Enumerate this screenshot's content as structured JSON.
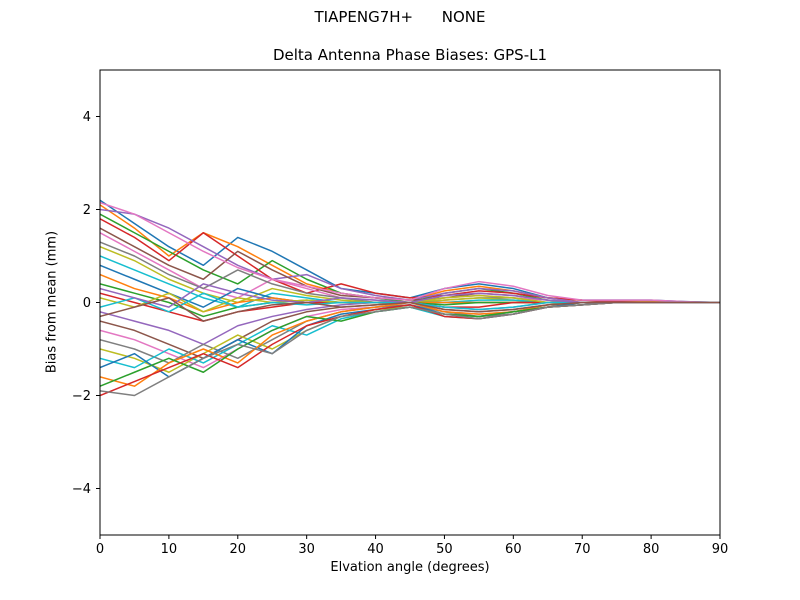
{
  "chart_data": {
    "type": "line",
    "suptitle": "TIAPENG7H+      NONE",
    "title": "Delta Antenna Phase Biases: GPS-L1",
    "xlabel": "Elvation angle (degrees)",
    "ylabel": "Bias from mean (mm)",
    "xlim": [
      0,
      90
    ],
    "ylim": [
      -5,
      5
    ],
    "xticks": [
      0,
      10,
      20,
      30,
      40,
      50,
      60,
      70,
      80,
      90
    ],
    "yticks": [
      -4,
      -2,
      0,
      2,
      4
    ],
    "grid": false,
    "legend": "none",
    "x": [
      0,
      5,
      10,
      15,
      20,
      25,
      30,
      35,
      40,
      45,
      50,
      55,
      60,
      65,
      70,
      75,
      80,
      85,
      90
    ],
    "series": [
      {
        "color": "#1f77b4",
        "values": [
          2.2,
          1.7,
          1.2,
          0.8,
          1.4,
          1.1,
          0.7,
          0.3,
          0.2,
          0.1,
          0.3,
          0.4,
          0.3,
          0.1,
          0.05,
          0.05,
          0.05,
          0.02,
          0
        ]
      },
      {
        "color": "#ff7f0e",
        "values": [
          2.1,
          1.6,
          1.0,
          1.5,
          1.2,
          0.8,
          0.4,
          0.2,
          0.1,
          0.05,
          0.25,
          0.35,
          0.25,
          0.1,
          0.05,
          0.03,
          0.02,
          0.01,
          0
        ]
      },
      {
        "color": "#2ca02c",
        "values": [
          1.9,
          1.5,
          1.1,
          0.7,
          0.4,
          0.9,
          0.5,
          0.2,
          0.1,
          0,
          0.2,
          0.3,
          0.2,
          0.05,
          0,
          0,
          0,
          0,
          0
        ]
      },
      {
        "color": "#d62728",
        "values": [
          1.8,
          1.4,
          0.9,
          1.5,
          1.0,
          0.5,
          0.2,
          0.4,
          0.2,
          0.1,
          0.15,
          0.25,
          0.2,
          0.1,
          0.05,
          0.02,
          0,
          0,
          0
        ]
      },
      {
        "color": "#9467bd",
        "values": [
          2.0,
          1.9,
          1.6,
          1.2,
          0.8,
          0.5,
          0.6,
          0.3,
          0.15,
          0.05,
          0.2,
          0.3,
          0.25,
          0.1,
          0,
          0,
          0,
          0,
          0
        ]
      },
      {
        "color": "#8c564b",
        "values": [
          1.6,
          1.2,
          0.8,
          0.5,
          1.1,
          0.7,
          0.35,
          0.15,
          0.1,
          0.05,
          0.1,
          0.2,
          0.15,
          0.05,
          0,
          0,
          0,
          0,
          0
        ]
      },
      {
        "color": "#e377c2",
        "values": [
          1.5,
          1.1,
          0.7,
          0.3,
          0.1,
          0.5,
          0.3,
          0.1,
          0.05,
          0,
          0.1,
          0.15,
          0.1,
          0.05,
          0,
          0,
          0,
          0,
          0
        ]
      },
      {
        "color": "#7f7f7f",
        "values": [
          1.3,
          1.0,
          0.6,
          0.3,
          0.7,
          0.4,
          0.2,
          0.1,
          0,
          0,
          0.05,
          0.1,
          0.1,
          0,
          0,
          0,
          0,
          0,
          0
        ]
      },
      {
        "color": "#bcbd22",
        "values": [
          1.2,
          0.9,
          0.5,
          0.2,
          0,
          0.3,
          0.15,
          0.05,
          0,
          0,
          0.05,
          0.1,
          0.05,
          0,
          0,
          0,
          0,
          0,
          0
        ]
      },
      {
        "color": "#17becf",
        "values": [
          1.0,
          0.7,
          0.4,
          0.1,
          -0.1,
          0.2,
          0.1,
          0,
          0,
          0,
          0,
          0.05,
          0.05,
          0,
          0,
          0,
          0,
          0,
          0
        ]
      },
      {
        "color": "#1f77b4",
        "values": [
          0.8,
          0.5,
          0.2,
          -0.1,
          0.3,
          0.1,
          0,
          0,
          0,
          0,
          0,
          0,
          0,
          0,
          0,
          0,
          0,
          0,
          0
        ]
      },
      {
        "color": "#ff7f0e",
        "values": [
          0.6,
          0.3,
          0.1,
          -0.2,
          0,
          0.1,
          0,
          0,
          0,
          0,
          0,
          0,
          0,
          0,
          0,
          0,
          0,
          0,
          0
        ]
      },
      {
        "color": "#2ca02c",
        "values": [
          0.4,
          0.2,
          0,
          -0.3,
          -0.1,
          0,
          0.05,
          0,
          0,
          0,
          -0.05,
          0,
          0,
          0,
          0,
          0,
          0,
          0,
          0
        ]
      },
      {
        "color": "#d62728",
        "values": [
          0.2,
          0,
          -0.2,
          -0.4,
          -0.2,
          -0.1,
          0,
          0,
          0,
          0,
          -0.1,
          -0.1,
          0,
          0,
          0,
          0,
          0,
          0,
          0
        ]
      },
      {
        "color": "#9467bd",
        "values": [
          -0.2,
          -0.4,
          -0.6,
          -0.9,
          -0.5,
          -0.3,
          -0.15,
          -0.05,
          0,
          0,
          -0.1,
          -0.15,
          -0.1,
          0,
          0,
          0,
          0,
          0,
          0
        ]
      },
      {
        "color": "#8c564b",
        "values": [
          -0.4,
          -0.6,
          -0.9,
          -1.2,
          -0.8,
          -0.4,
          -0.2,
          -0.1,
          -0.05,
          0,
          -0.15,
          -0.2,
          -0.15,
          -0.05,
          0,
          0,
          0,
          0,
          0
        ]
      },
      {
        "color": "#e377c2",
        "values": [
          -0.6,
          -0.8,
          -1.1,
          -1.4,
          -1.0,
          -0.6,
          -0.3,
          -0.15,
          -0.1,
          -0.05,
          -0.2,
          -0.25,
          -0.2,
          -0.1,
          -0.05,
          0,
          0,
          0,
          0
        ]
      },
      {
        "color": "#7f7f7f",
        "values": [
          -0.8,
          -1.0,
          -1.3,
          -0.9,
          -1.2,
          -0.8,
          -0.4,
          -0.2,
          -0.1,
          -0.05,
          -0.2,
          -0.3,
          -0.25,
          -0.1,
          -0.05,
          0,
          0,
          0,
          0
        ]
      },
      {
        "color": "#bcbd22",
        "values": [
          -1.0,
          -1.2,
          -1.5,
          -1.1,
          -0.7,
          -1.0,
          -0.6,
          -0.3,
          -0.15,
          -0.1,
          -0.25,
          -0.3,
          -0.2,
          -0.1,
          0,
          0,
          0,
          0,
          0
        ]
      },
      {
        "color": "#17becf",
        "values": [
          -1.2,
          -1.4,
          -1.0,
          -1.3,
          -0.9,
          -0.5,
          -0.7,
          -0.35,
          -0.2,
          -0.1,
          -0.3,
          -0.35,
          -0.25,
          -0.1,
          -0.05,
          0,
          0,
          0,
          0
        ]
      },
      {
        "color": "#1f77b4",
        "values": [
          -1.4,
          -1.1,
          -1.6,
          -1.2,
          -0.8,
          -1.1,
          -0.5,
          -0.25,
          -0.15,
          -0.05,
          -0.25,
          -0.3,
          -0.2,
          -0.1,
          0,
          0,
          0,
          0,
          0
        ]
      },
      {
        "color": "#ff7f0e",
        "values": [
          -1.6,
          -1.8,
          -1.3,
          -1.0,
          -1.3,
          -0.7,
          -0.4,
          -0.2,
          -0.1,
          0,
          -0.2,
          -0.25,
          -0.2,
          -0.05,
          0,
          0,
          0,
          0,
          0
        ]
      },
      {
        "color": "#2ca02c",
        "values": [
          -1.8,
          -1.5,
          -1.2,
          -1.5,
          -1.0,
          -0.6,
          -0.3,
          -0.4,
          -0.2,
          -0.1,
          -0.25,
          -0.3,
          -0.2,
          -0.1,
          -0.05,
          0,
          0,
          0,
          0
        ]
      },
      {
        "color": "#d62728",
        "values": [
          -2.0,
          -1.7,
          -1.4,
          -1.1,
          -1.4,
          -0.9,
          -0.5,
          -0.3,
          -0.15,
          -0.05,
          -0.3,
          -0.35,
          -0.25,
          -0.1,
          -0.05,
          0,
          0,
          0,
          0
        ]
      },
      {
        "color": "#e377c2",
        "values": [
          2.15,
          1.9,
          1.5,
          1.1,
          0.75,
          0.5,
          0.35,
          0.2,
          0.1,
          0.05,
          0.3,
          0.45,
          0.35,
          0.15,
          0.05,
          0.05,
          0.05,
          0.02,
          0
        ]
      },
      {
        "color": "#7f7f7f",
        "values": [
          -1.9,
          -2.0,
          -1.6,
          -1.2,
          -0.9,
          -1.1,
          -0.6,
          -0.3,
          -0.2,
          -0.1,
          -0.25,
          -0.35,
          -0.25,
          -0.1,
          -0.05,
          0,
          0,
          0,
          0
        ]
      },
      {
        "color": "#bcbd22",
        "values": [
          0.1,
          -0.1,
          0.2,
          -0.2,
          0.1,
          0,
          0.05,
          0,
          0,
          0,
          0.1,
          0.15,
          0.1,
          0,
          0,
          0,
          0,
          0,
          0
        ]
      },
      {
        "color": "#17becf",
        "values": [
          -0.1,
          0.1,
          -0.2,
          0.2,
          -0.1,
          0,
          -0.05,
          0,
          0,
          0,
          -0.1,
          -0.15,
          -0.1,
          0,
          0,
          0,
          0,
          0,
          0
        ]
      },
      {
        "color": "#9467bd",
        "values": [
          0.3,
          0.1,
          -0.1,
          0.4,
          0.2,
          0.05,
          0,
          0.1,
          0.05,
          0,
          0.15,
          0.2,
          0.15,
          0.05,
          0,
          0,
          0,
          0,
          0
        ]
      },
      {
        "color": "#8c564b",
        "values": [
          -0.3,
          -0.1,
          0.1,
          -0.4,
          -0.2,
          -0.05,
          0,
          -0.1,
          -0.05,
          0,
          -0.15,
          -0.2,
          -0.15,
          -0.05,
          0,
          0,
          0,
          0,
          0
        ]
      }
    ]
  }
}
